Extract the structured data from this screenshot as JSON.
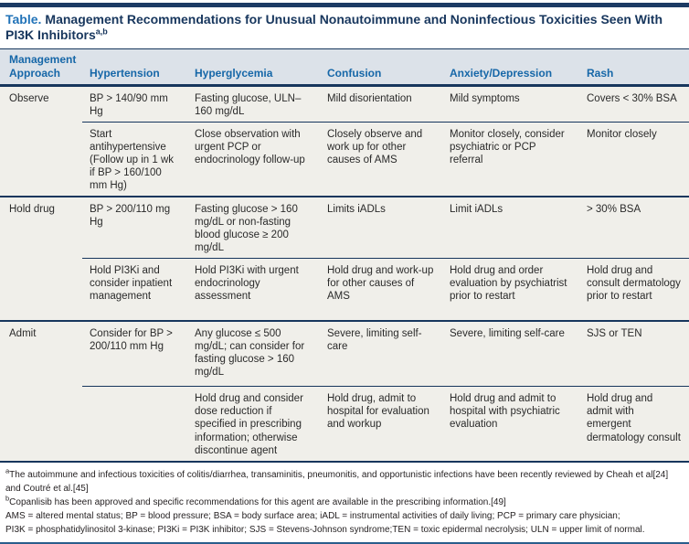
{
  "title": {
    "label": "Table.",
    "text": "Management Recommendations for Unusual Nonautoimmune and Noninfectious Toxicities Seen With PI3K Inhibitors",
    "superscript": "a,b"
  },
  "table": {
    "columns": [
      "Management Approach",
      "Hypertension",
      "Hyperglycemia",
      "Confusion",
      "Anxiety/Depression",
      "Rash"
    ],
    "sections": [
      {
        "approach": "Observe",
        "rows": [
          [
            "BP > 140/90 mm Hg",
            "Fasting glucose, ULN–160 mg/dL",
            "Mild disorientation",
            "Mild symptoms",
            "Covers < 30% BSA"
          ],
          [
            "Start antihypertensive (Follow up in 1 wk if BP > 160/100 mm Hg)",
            "Close observation with urgent PCP or endocrinology follow-up",
            "Closely observe and work up for other causes of AMS",
            "Monitor closely, consider psychiatric or PCP referral",
            "Monitor closely"
          ]
        ]
      },
      {
        "approach": "Hold drug",
        "rows": [
          [
            "BP > 200/110 mg Hg",
            "Fasting glucose > 160 mg/dL or non-fasting blood glucose ≥ 200 mg/dL",
            "Limits iADLs",
            "Limit iADLs",
            "> 30% BSA"
          ],
          [
            "Hold PI3Ki and consider inpatient management",
            "Hold PI3Ki with urgent endocrinology assessment",
            "Hold drug and work-up for other causes of AMS",
            "Hold drug and order evaluation by psychiatrist prior to restart",
            "Hold drug and consult dermatology prior to restart"
          ]
        ]
      },
      {
        "approach": "Admit",
        "rows": [
          [
            "Consider for BP > 200/110 mm Hg",
            "Any glucose ≤ 500 mg/dL; can consider for fasting glucose > 160 mg/dL",
            "Severe, limiting self-care",
            "Severe, limiting self-care",
            "SJS or TEN"
          ],
          [
            "",
            "Hold drug and consider dose reduction if specified in prescribing information; otherwise discontinue agent",
            "Hold drug, admit to hospital for evaluation and workup",
            "Hold drug and admit to hospital with psychiatric evaluation",
            "Hold drug and admit with emergent dermatology consult"
          ]
        ]
      }
    ]
  },
  "footnotes": [
    {
      "sup": "a",
      "text": "The autoimmune and infectious toxicities of colitis/diarrhea, transaminitis, pneumonitis, and opportunistic infections have been recently reviewed by Cheah et al[24] and Coutré et al.[45]"
    },
    {
      "sup": "b",
      "text": "Copanlisib has been approved and specific recommendations for this agent are available in the prescribing information.[49]"
    },
    {
      "sup": "",
      "text": "AMS = altered mental status; BP = blood pressure; BSA = body surface area; iADL = instrumental activities of daily living; PCP = primary care physician;"
    },
    {
      "sup": "",
      "text": "PI3K = phosphatidylinositol 3-kinase; PI3Ki = PI3K inhibitor; SJS = Stevens-Johnson syndrome;TEN = toxic epidermal necrolysis; ULN = upper limit of normal."
    }
  ],
  "colors": {
    "navy_rule": "#17365D",
    "title_label_blue": "#2273B8",
    "header_text_blue": "#1667A8",
    "header_bg": "#DCE2E9",
    "body_bg": "#F0EFEA"
  }
}
